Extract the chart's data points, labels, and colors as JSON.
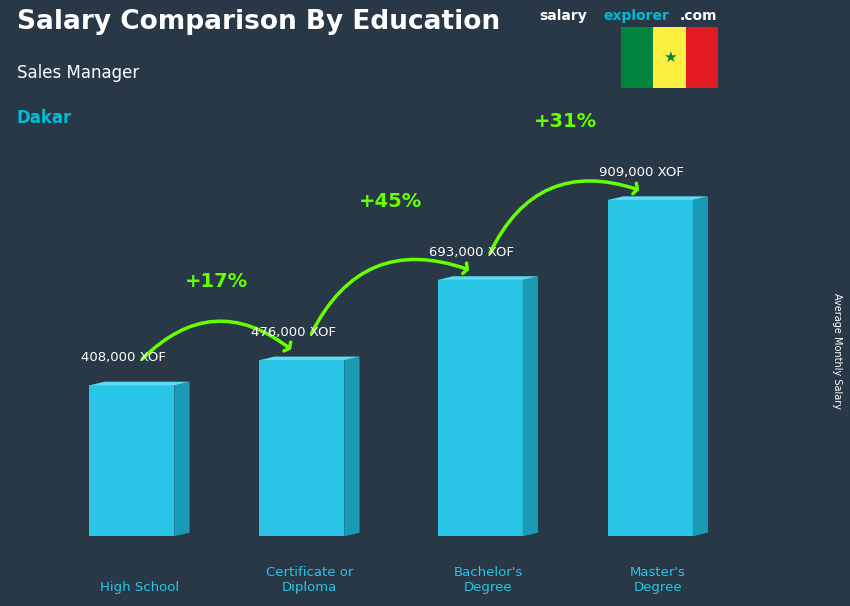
{
  "title_main": "Salary Comparison By Education",
  "title_sub": "Sales Manager",
  "title_city": "Dakar",
  "ylabel": "Average Monthly Salary",
  "categories": [
    "High School",
    "Certificate or\nDiploma",
    "Bachelor's\nDegree",
    "Master's\nDegree"
  ],
  "values": [
    408000,
    476000,
    693000,
    909000
  ],
  "value_labels": [
    "408,000 XOF",
    "476,000 XOF",
    "693,000 XOF",
    "909,000 XOF"
  ],
  "pct_labels": [
    "+17%",
    "+45%",
    "+31%"
  ],
  "bar_face_color": "#29c5e6",
  "bar_right_color": "#1a9ab5",
  "bar_top_color": "#5ddcf5",
  "title_color": "#ffffff",
  "subtitle_color": "#ffffff",
  "city_color": "#00bcd4",
  "value_label_color": "#ffffff",
  "pct_color": "#66ff00",
  "arrow_color": "#66ff00",
  "cat_label_color": "#29c5e6",
  "bg_color": "#2a3a4a",
  "watermark_salary_color": "#ffffff",
  "watermark_explorer_color": "#00bcd4",
  "flag_green": "#00853F",
  "flag_yellow": "#FDEF42",
  "flag_red": "#E31B23"
}
